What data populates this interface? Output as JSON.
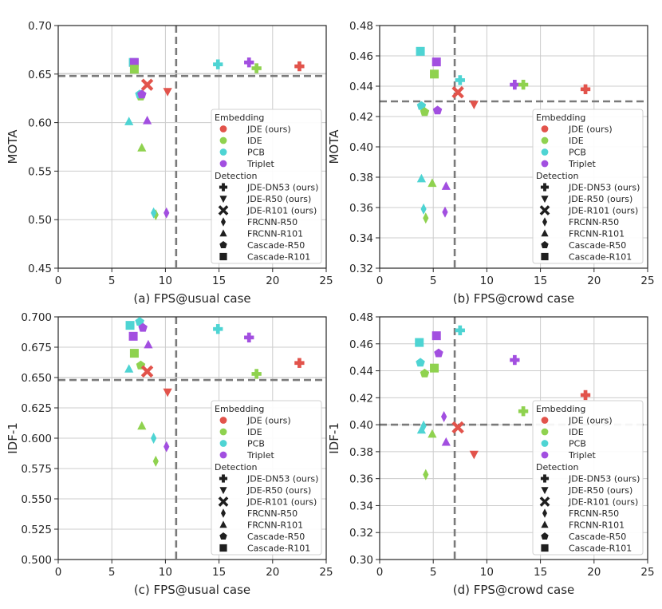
{
  "colors": {
    "JDE": "#e2534b",
    "IDE": "#8fd24f",
    "PCB": "#4ed4d3",
    "Triplet": "#a24fe0",
    "legendMarker": "#1f1f1f",
    "threshold": "#7a7a7a",
    "grid": "#cccccc",
    "axis": "#262626"
  },
  "legend": {
    "embedding_title": "Embedding",
    "embedding": [
      {
        "key": "JDE",
        "label": "JDE (ours)"
      },
      {
        "key": "IDE",
        "label": "IDE"
      },
      {
        "key": "PCB",
        "label": "PCB"
      },
      {
        "key": "Triplet",
        "label": "Triplet"
      }
    ],
    "detection_title": "Detection",
    "detection": [
      {
        "marker": "plus",
        "label": "JDE-DN53 (ours)"
      },
      {
        "marker": "tri_down",
        "label": "JDE-R50 (ours)"
      },
      {
        "marker": "x",
        "label": "JDE-R101 (ours)"
      },
      {
        "marker": "diamond",
        "label": "FRCNN-R50"
      },
      {
        "marker": "tri_up",
        "label": "FRCNN-R101"
      },
      {
        "marker": "pentagon",
        "label": "Cascade-R50"
      },
      {
        "marker": "square",
        "label": "Cascade-R101"
      }
    ]
  },
  "chart_data": [
    {
      "type": "scatter",
      "xlabel": "(a) FPS@usual case",
      "ylabel": "MOTA",
      "xlim": [
        0,
        25
      ],
      "ylim": [
        0.45,
        0.7
      ],
      "xticks": [
        0,
        5,
        10,
        15,
        20,
        25
      ],
      "yticks": [
        0.45,
        0.5,
        0.55,
        0.6,
        0.65,
        0.7
      ],
      "ytick_decimals": 2,
      "threshold_x": 11.0,
      "threshold_y": 0.648,
      "threshold_y_double": true,
      "legend_position": "lower-right",
      "points": [
        {
          "x": 7.0,
          "y": 0.662,
          "emb": "PCB",
          "det": "square"
        },
        {
          "x": 7.1,
          "y": 0.662,
          "emb": "Triplet",
          "det": "square"
        },
        {
          "x": 7.1,
          "y": 0.655,
          "emb": "IDE",
          "det": "square"
        },
        {
          "x": 7.7,
          "y": 0.627,
          "emb": "IDE",
          "det": "pentagon"
        },
        {
          "x": 7.6,
          "y": 0.629,
          "emb": "PCB",
          "det": "pentagon"
        },
        {
          "x": 7.8,
          "y": 0.629,
          "emb": "Triplet",
          "det": "pentagon"
        },
        {
          "x": 6.6,
          "y": 0.601,
          "emb": "PCB",
          "det": "tri_up"
        },
        {
          "x": 8.3,
          "y": 0.602,
          "emb": "Triplet",
          "det": "tri_up"
        },
        {
          "x": 7.8,
          "y": 0.574,
          "emb": "IDE",
          "det": "tri_up"
        },
        {
          "x": 8.3,
          "y": 0.639,
          "emb": "JDE",
          "det": "x"
        },
        {
          "x": 10.2,
          "y": 0.632,
          "emb": "JDE",
          "det": "tri_down"
        },
        {
          "x": 9.1,
          "y": 0.505,
          "emb": "IDE",
          "det": "diamond"
        },
        {
          "x": 8.9,
          "y": 0.507,
          "emb": "PCB",
          "det": "diamond"
        },
        {
          "x": 10.1,
          "y": 0.507,
          "emb": "Triplet",
          "det": "diamond"
        },
        {
          "x": 14.9,
          "y": 0.66,
          "emb": "PCB",
          "det": "plus"
        },
        {
          "x": 17.8,
          "y": 0.662,
          "emb": "Triplet",
          "det": "plus"
        },
        {
          "x": 18.5,
          "y": 0.656,
          "emb": "IDE",
          "det": "plus"
        },
        {
          "x": 22.5,
          "y": 0.658,
          "emb": "JDE",
          "det": "plus"
        }
      ]
    },
    {
      "type": "scatter",
      "xlabel": "(b) FPS@crowd case",
      "ylabel": "MOTA",
      "xlim": [
        0,
        25
      ],
      "ylim": [
        0.32,
        0.48
      ],
      "xticks": [
        0,
        5,
        10,
        15,
        20,
        25
      ],
      "yticks": [
        0.32,
        0.34,
        0.36,
        0.38,
        0.4,
        0.42,
        0.44,
        0.46,
        0.48
      ],
      "ytick_decimals": 2,
      "threshold_x": 7.0,
      "threshold_y": 0.43,
      "threshold_y_double": false,
      "legend_position": "lower-right",
      "points": [
        {
          "x": 3.8,
          "y": 0.463,
          "emb": "PCB",
          "det": "square"
        },
        {
          "x": 5.3,
          "y": 0.456,
          "emb": "Triplet",
          "det": "square"
        },
        {
          "x": 5.1,
          "y": 0.448,
          "emb": "IDE",
          "det": "square"
        },
        {
          "x": 3.9,
          "y": 0.427,
          "emb": "PCB",
          "det": "pentagon"
        },
        {
          "x": 4.2,
          "y": 0.423,
          "emb": "IDE",
          "det": "pentagon"
        },
        {
          "x": 5.4,
          "y": 0.424,
          "emb": "Triplet",
          "det": "pentagon"
        },
        {
          "x": 3.9,
          "y": 0.379,
          "emb": "PCB",
          "det": "tri_up"
        },
        {
          "x": 4.9,
          "y": 0.376,
          "emb": "IDE",
          "det": "tri_up"
        },
        {
          "x": 6.2,
          "y": 0.374,
          "emb": "Triplet",
          "det": "tri_up"
        },
        {
          "x": 4.1,
          "y": 0.359,
          "emb": "PCB",
          "det": "diamond"
        },
        {
          "x": 4.3,
          "y": 0.353,
          "emb": "IDE",
          "det": "diamond"
        },
        {
          "x": 6.1,
          "y": 0.357,
          "emb": "Triplet",
          "det": "diamond"
        },
        {
          "x": 7.3,
          "y": 0.436,
          "emb": "JDE",
          "det": "x"
        },
        {
          "x": 8.8,
          "y": 0.428,
          "emb": "JDE",
          "det": "tri_down"
        },
        {
          "x": 7.5,
          "y": 0.444,
          "emb": "PCB",
          "det": "plus"
        },
        {
          "x": 12.6,
          "y": 0.441,
          "emb": "Triplet",
          "det": "plus"
        },
        {
          "x": 13.4,
          "y": 0.441,
          "emb": "IDE",
          "det": "plus"
        },
        {
          "x": 19.2,
          "y": 0.438,
          "emb": "JDE",
          "det": "plus"
        }
      ]
    },
    {
      "type": "scatter",
      "xlabel": "(c) FPS@usual case",
      "ylabel": "IDF-1",
      "xlim": [
        0,
        25
      ],
      "ylim": [
        0.5,
        0.7
      ],
      "xticks": [
        0,
        5,
        10,
        15,
        20,
        25
      ],
      "yticks": [
        0.5,
        0.525,
        0.55,
        0.575,
        0.6,
        0.625,
        0.65,
        0.675,
        0.7
      ],
      "ytick_decimals": 3,
      "threshold_x": 11.0,
      "threshold_y": 0.648,
      "threshold_y_double": true,
      "legend_position": "lower-right",
      "points": [
        {
          "x": 6.7,
          "y": 0.693,
          "emb": "PCB",
          "det": "square"
        },
        {
          "x": 7.0,
          "y": 0.684,
          "emb": "Triplet",
          "det": "square"
        },
        {
          "x": 7.1,
          "y": 0.67,
          "emb": "IDE",
          "det": "square"
        },
        {
          "x": 7.6,
          "y": 0.696,
          "emb": "PCB",
          "det": "pentagon"
        },
        {
          "x": 7.9,
          "y": 0.691,
          "emb": "Triplet",
          "det": "pentagon"
        },
        {
          "x": 7.7,
          "y": 0.66,
          "emb": "IDE",
          "det": "pentagon"
        },
        {
          "x": 6.6,
          "y": 0.657,
          "emb": "PCB",
          "det": "tri_up"
        },
        {
          "x": 8.4,
          "y": 0.677,
          "emb": "Triplet",
          "det": "tri_up"
        },
        {
          "x": 7.8,
          "y": 0.61,
          "emb": "IDE",
          "det": "tri_up"
        },
        {
          "x": 8.3,
          "y": 0.655,
          "emb": "JDE",
          "det": "x"
        },
        {
          "x": 10.2,
          "y": 0.638,
          "emb": "JDE",
          "det": "tri_down"
        },
        {
          "x": 8.9,
          "y": 0.6,
          "emb": "PCB",
          "det": "diamond"
        },
        {
          "x": 10.1,
          "y": 0.593,
          "emb": "Triplet",
          "det": "diamond"
        },
        {
          "x": 9.1,
          "y": 0.581,
          "emb": "IDE",
          "det": "diamond"
        },
        {
          "x": 14.9,
          "y": 0.69,
          "emb": "PCB",
          "det": "plus"
        },
        {
          "x": 17.8,
          "y": 0.683,
          "emb": "Triplet",
          "det": "plus"
        },
        {
          "x": 18.5,
          "y": 0.653,
          "emb": "IDE",
          "det": "plus"
        },
        {
          "x": 22.5,
          "y": 0.662,
          "emb": "JDE",
          "det": "plus"
        }
      ]
    },
    {
      "type": "scatter",
      "xlabel": "(d) FPS@crowd case",
      "ylabel": "IDF-1",
      "xlim": [
        0,
        25
      ],
      "ylim": [
        0.3,
        0.48
      ],
      "xticks": [
        0,
        5,
        10,
        15,
        20,
        25
      ],
      "yticks": [
        0.3,
        0.32,
        0.34,
        0.36,
        0.38,
        0.4,
        0.42,
        0.44,
        0.46,
        0.48
      ],
      "ytick_decimals": 2,
      "threshold_x": 7.0,
      "threshold_y": 0.4,
      "threshold_y_double": false,
      "legend_position": "lower-right",
      "points": [
        {
          "x": 3.7,
          "y": 0.461,
          "emb": "PCB",
          "det": "square"
        },
        {
          "x": 5.3,
          "y": 0.466,
          "emb": "Triplet",
          "det": "square"
        },
        {
          "x": 5.1,
          "y": 0.442,
          "emb": "IDE",
          "det": "square"
        },
        {
          "x": 3.8,
          "y": 0.446,
          "emb": "PCB",
          "det": "pentagon"
        },
        {
          "x": 4.2,
          "y": 0.438,
          "emb": "IDE",
          "det": "pentagon"
        },
        {
          "x": 5.5,
          "y": 0.453,
          "emb": "Triplet",
          "det": "pentagon"
        },
        {
          "x": 3.9,
          "y": 0.396,
          "emb": "PCB",
          "det": "tri_up"
        },
        {
          "x": 4.9,
          "y": 0.393,
          "emb": "IDE",
          "det": "tri_up"
        },
        {
          "x": 6.2,
          "y": 0.387,
          "emb": "Triplet",
          "det": "tri_up"
        },
        {
          "x": 4.1,
          "y": 0.399,
          "emb": "PCB",
          "det": "diamond"
        },
        {
          "x": 4.3,
          "y": 0.363,
          "emb": "IDE",
          "det": "diamond"
        },
        {
          "x": 6.0,
          "y": 0.406,
          "emb": "Triplet",
          "det": "diamond"
        },
        {
          "x": 7.3,
          "y": 0.398,
          "emb": "JDE",
          "det": "x"
        },
        {
          "x": 8.8,
          "y": 0.378,
          "emb": "JDE",
          "det": "tri_down"
        },
        {
          "x": 7.5,
          "y": 0.47,
          "emb": "PCB",
          "det": "plus"
        },
        {
          "x": 12.6,
          "y": 0.448,
          "emb": "Triplet",
          "det": "plus"
        },
        {
          "x": 13.4,
          "y": 0.41,
          "emb": "IDE",
          "det": "plus"
        },
        {
          "x": 19.2,
          "y": 0.422,
          "emb": "JDE",
          "det": "plus"
        }
      ]
    }
  ]
}
